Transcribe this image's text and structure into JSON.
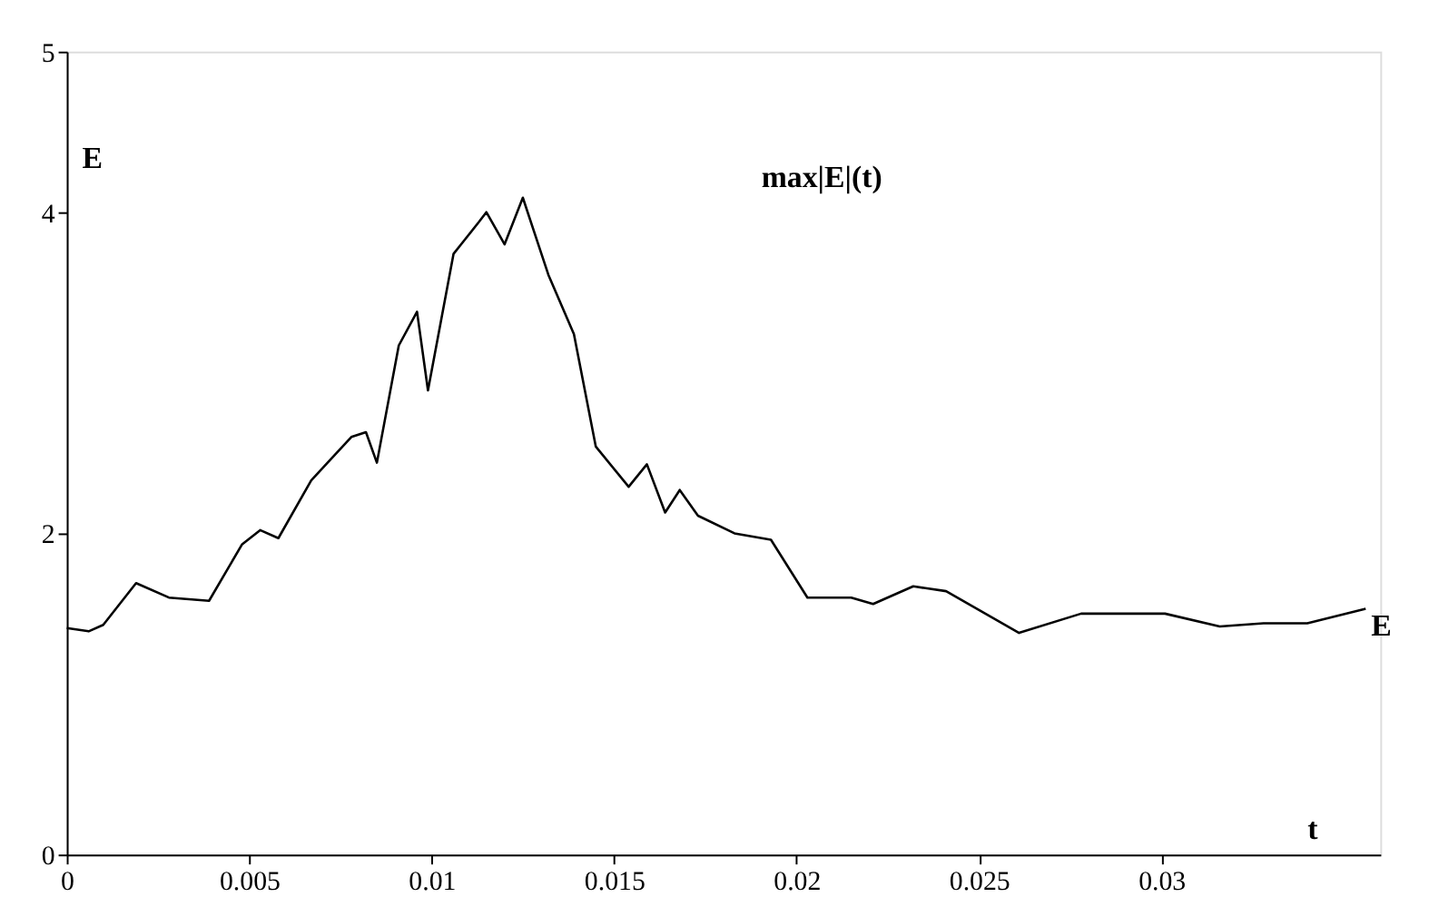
{
  "chart_data": {
    "type": "line",
    "xlabel": "t",
    "ylabel": "E",
    "annotations": [
      "max|E|(t)"
    ],
    "x": [
      0,
      0.0006,
      0.001,
      0.0019,
      0.0028,
      0.0039,
      0.0048,
      0.0053,
      0.0058,
      0.0067,
      0.0078,
      0.0082,
      0.0085,
      0.0091,
      0.0096,
      0.0099,
      0.0106,
      0.0113,
      0.0115,
      0.012,
      0.0125,
      0.0132,
      0.0139,
      0.0145,
      0.0154,
      0.0159,
      0.0164,
      0.0168,
      0.0173,
      0.0183,
      0.0193,
      0.0203,
      0.0215,
      0.0221,
      0.0232,
      0.0241,
      0.0261,
      0.0278,
      0.0301,
      0.0316,
      0.0328,
      0.034,
      0.0356
    ],
    "series": [
      {
        "name": "E",
        "color": "#000000",
        "values": [
          1.41,
          1.39,
          1.43,
          1.69,
          1.6,
          1.58,
          1.93,
          2.02,
          1.97,
          2.33,
          2.6,
          2.63,
          2.44,
          3.17,
          3.38,
          2.89,
          3.74,
          3.94,
          4.0,
          3.8,
          4.09,
          3.61,
          3.24,
          2.54,
          2.29,
          2.43,
          2.13,
          2.27,
          2.11,
          2.0,
          1.96,
          1.6,
          1.6,
          1.56,
          1.67,
          1.64,
          1.38,
          1.5,
          1.5,
          1.42,
          1.44,
          1.44,
          1.53
        ]
      }
    ],
    "xlim": [
      0,
      0.036
    ],
    "xticks": [
      0,
      0.005,
      0.01,
      0.015,
      0.02,
      0.025,
      0.03
    ],
    "ylim": [
      0,
      5
    ],
    "yticks": [
      0,
      2,
      4,
      5
    ],
    "grid": false,
    "legend": false,
    "marker": "none",
    "line_style": "solid"
  }
}
